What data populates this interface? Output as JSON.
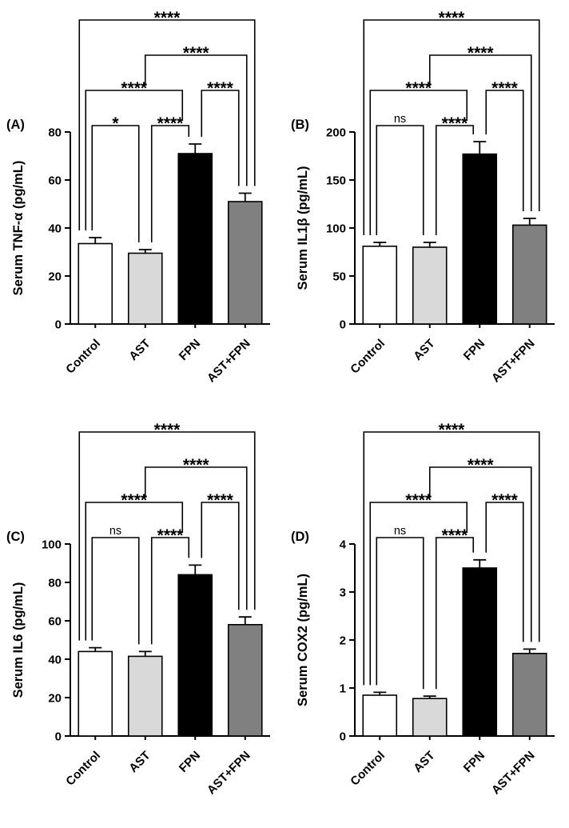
{
  "page": {
    "background": "#ffffff"
  },
  "chart_data": [
    {
      "type": "bar",
      "panel_label": "(A)",
      "ylabel": "Serum TNF-α (pg/mL)",
      "categories": [
        "Control",
        "AST",
        "FPN",
        "AST+FPN"
      ],
      "values": [
        33.5,
        29.5,
        71,
        51
      ],
      "errors": [
        2.5,
        1.5,
        4,
        3.5
      ],
      "bar_colors": [
        "#ffffff",
        "#d9d9d9",
        "#000000",
        "#808080"
      ],
      "bar_border": "#000000",
      "ylim": [
        0,
        80
      ],
      "yticks": [
        0,
        20,
        40,
        60,
        80
      ],
      "significance": [
        {
          "from": "Control",
          "to": "AST",
          "label": "*",
          "level": 1
        },
        {
          "from": "AST",
          "to": "FPN",
          "label": "****",
          "level": 1
        },
        {
          "from": "Control",
          "to": "FPN",
          "label": "****",
          "level": 2
        },
        {
          "from": "FPN",
          "to": "AST+FPN",
          "label": "****",
          "level": 2
        },
        {
          "from": "AST",
          "to": "AST+FPN",
          "label": "****",
          "level": 3
        },
        {
          "from": "Control",
          "to": "AST+FPN",
          "label": "****",
          "level": 4
        }
      ]
    },
    {
      "type": "bar",
      "panel_label": "(B)",
      "ylabel": "Serum IL1β (pg/mL)",
      "categories": [
        "Control",
        "AST",
        "FPN",
        "AST+FPN"
      ],
      "values": [
        81,
        80,
        177,
        103
      ],
      "errors": [
        4,
        5,
        13,
        7
      ],
      "bar_colors": [
        "#ffffff",
        "#d9d9d9",
        "#000000",
        "#808080"
      ],
      "bar_border": "#000000",
      "ylim": [
        0,
        200
      ],
      "yticks": [
        0,
        50,
        100,
        150,
        200
      ],
      "significance": [
        {
          "from": "Control",
          "to": "AST",
          "label": "ns",
          "level": 1
        },
        {
          "from": "AST",
          "to": "FPN",
          "label": "****",
          "level": 1
        },
        {
          "from": "Control",
          "to": "FPN",
          "label": "****",
          "level": 2
        },
        {
          "from": "FPN",
          "to": "AST+FPN",
          "label": "****",
          "level": 2
        },
        {
          "from": "AST",
          "to": "AST+FPN",
          "label": "****",
          "level": 3
        },
        {
          "from": "Control",
          "to": "AST+FPN",
          "label": "****",
          "level": 4
        }
      ]
    },
    {
      "type": "bar",
      "panel_label": "(C)",
      "ylabel": "Serum IL6 (pg/mL)",
      "categories": [
        "Control",
        "AST",
        "FPN",
        "AST+FPN"
      ],
      "values": [
        44,
        41.5,
        84,
        58
      ],
      "errors": [
        2,
        2.5,
        5,
        4
      ],
      "bar_colors": [
        "#ffffff",
        "#d9d9d9",
        "#000000",
        "#808080"
      ],
      "bar_border": "#000000",
      "ylim": [
        0,
        100
      ],
      "yticks": [
        0,
        20,
        40,
        60,
        80,
        100
      ],
      "significance": [
        {
          "from": "Control",
          "to": "AST",
          "label": "ns",
          "level": 1
        },
        {
          "from": "AST",
          "to": "FPN",
          "label": "****",
          "level": 1
        },
        {
          "from": "Control",
          "to": "FPN",
          "label": "****",
          "level": 2
        },
        {
          "from": "FPN",
          "to": "AST+FPN",
          "label": "****",
          "level": 2
        },
        {
          "from": "AST",
          "to": "AST+FPN",
          "label": "****",
          "level": 3
        },
        {
          "from": "Control",
          "to": "AST+FPN",
          "label": "****",
          "level": 4
        }
      ]
    },
    {
      "type": "bar",
      "panel_label": "(D)",
      "ylabel": "Serum COX2 (pg/mL)",
      "categories": [
        "Control",
        "AST",
        "FPN",
        "AST+FPN"
      ],
      "values": [
        0.85,
        0.78,
        3.5,
        1.72
      ],
      "errors": [
        0.06,
        0.05,
        0.17,
        0.09
      ],
      "bar_colors": [
        "#ffffff",
        "#d9d9d9",
        "#000000",
        "#808080"
      ],
      "bar_border": "#000000",
      "ylim": [
        0,
        4
      ],
      "yticks": [
        0,
        1,
        2,
        3,
        4
      ],
      "significance": [
        {
          "from": "Control",
          "to": "AST",
          "label": "ns",
          "level": 1
        },
        {
          "from": "AST",
          "to": "FPN",
          "label": "****",
          "level": 1
        },
        {
          "from": "Control",
          "to": "FPN",
          "label": "****",
          "level": 2
        },
        {
          "from": "FPN",
          "to": "AST+FPN",
          "label": "****",
          "level": 2
        },
        {
          "from": "AST",
          "to": "AST+FPN",
          "label": "****",
          "level": 3
        },
        {
          "from": "Control",
          "to": "AST+FPN",
          "label": "****",
          "level": 4
        }
      ]
    }
  ]
}
